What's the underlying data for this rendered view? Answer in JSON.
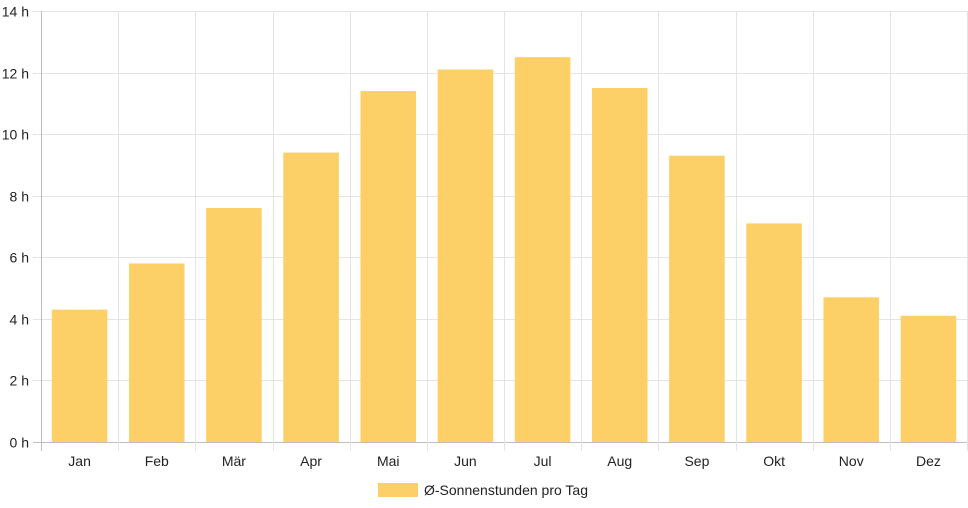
{
  "chart_data": {
    "type": "bar",
    "categories": [
      "Jan",
      "Feb",
      "Mär",
      "Apr",
      "Mai",
      "Jun",
      "Jul",
      "Aug",
      "Sep",
      "Okt",
      "Nov",
      "Dez"
    ],
    "series": [
      {
        "name": "Ø-Sonnenstunden pro Tag",
        "values": [
          4.3,
          5.8,
          7.6,
          9.4,
          11.4,
          12.1,
          12.5,
          11.5,
          9.3,
          7.1,
          4.7,
          4.1
        ],
        "color": "#fdd067"
      }
    ],
    "yticks": [
      "0 h",
      "2 h",
      "4 h",
      "6 h",
      "8 h",
      "10 h",
      "12 h",
      "14 h"
    ],
    "ylim": [
      0,
      14
    ],
    "grid": true,
    "legend_position": "bottom"
  }
}
